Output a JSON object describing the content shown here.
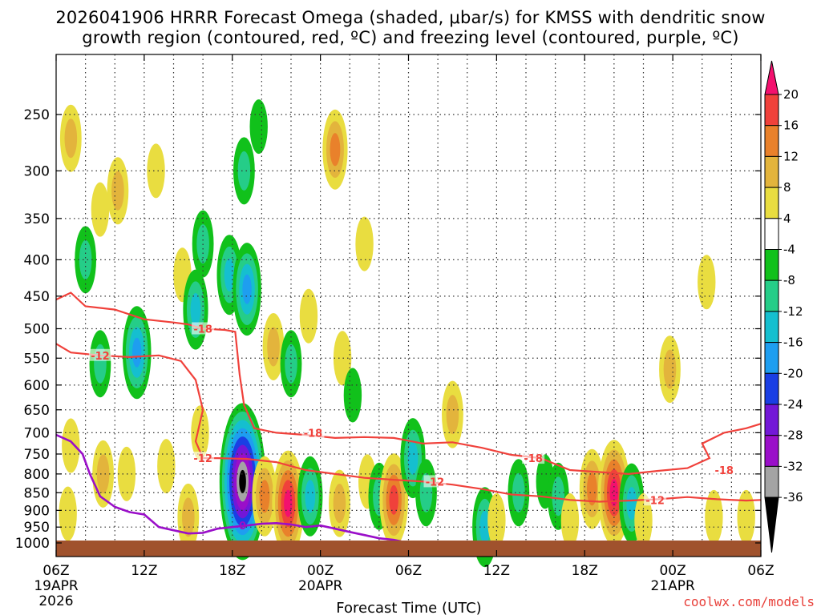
{
  "chart_data": {
    "type": "heatmap",
    "title_line1": "2026041906 HRRR Forecast Omega (shaded, μbar/s) for KMSS with dendritic snow",
    "title_line2": "growth region (contoured, red, ºC) and freezing level (contoured, purple, ºC)",
    "xlabel": "Forecast Time (UTC)",
    "ylabel": "",
    "y_scale": "log-pressure",
    "ylim": [
      1000,
      200
    ],
    "y_ticks": [
      250,
      300,
      350,
      400,
      450,
      500,
      550,
      600,
      650,
      700,
      750,
      800,
      850,
      900,
      950,
      1000
    ],
    "x_range_hours": [
      0,
      48
    ],
    "x_ticks": [
      {
        "hour": 0,
        "label": "06Z",
        "sub1": "19APR",
        "sub2": "2026"
      },
      {
        "hour": 6,
        "label": "12Z",
        "sub1": "",
        "sub2": ""
      },
      {
        "hour": 12,
        "label": "18Z",
        "sub1": "",
        "sub2": ""
      },
      {
        "hour": 18,
        "label": "00Z",
        "sub1": "20APR",
        "sub2": ""
      },
      {
        "hour": 24,
        "label": "06Z",
        "sub1": "",
        "sub2": ""
      },
      {
        "hour": 30,
        "label": "12Z",
        "sub1": "",
        "sub2": ""
      },
      {
        "hour": 36,
        "label": "18Z",
        "sub1": "",
        "sub2": ""
      },
      {
        "hour": 42,
        "label": "00Z",
        "sub1": "21APR",
        "sub2": ""
      },
      {
        "hour": 48,
        "label": "06Z",
        "sub1": "",
        "sub2": ""
      }
    ],
    "grid": true,
    "colorbar": {
      "position": "right",
      "labels": [
        "20",
        "16",
        "12",
        "8",
        "4",
        "-4",
        "-8",
        "-12",
        "-16",
        "-20",
        "-24",
        "-28",
        "-32",
        "-36"
      ],
      "colors": [
        "#f3106e",
        "#f0413b",
        "#e9812b",
        "#e3b43c",
        "#e9dd40",
        "#ffffff",
        "#11c11b",
        "#25cd88",
        "#15bfcf",
        "#1e9ef0",
        "#1a3fe4",
        "#7317d7",
        "#9a0fc9",
        "#a4a4a4",
        "#000000"
      ]
    },
    "omega_cells": [
      {
        "hour": 1.0,
        "p": 270,
        "value": 10
      },
      {
        "hour": 3.0,
        "p": 340,
        "value": 6
      },
      {
        "hour": 4.2,
        "p": 320,
        "value": 10
      },
      {
        "hour": 6.8,
        "p": 300,
        "value": 4
      },
      {
        "hour": 2.0,
        "p": 400,
        "value": -8
      },
      {
        "hour": 5.5,
        "p": 540,
        "value": -16
      },
      {
        "hour": 3.0,
        "p": 560,
        "value": -10
      },
      {
        "hour": 1.0,
        "p": 730,
        "value": 6
      },
      {
        "hour": 0.8,
        "p": 910,
        "value": 4
      },
      {
        "hour": 3.2,
        "p": 800,
        "value": 8
      },
      {
        "hour": 4.8,
        "p": 800,
        "value": 4
      },
      {
        "hour": 7.5,
        "p": 780,
        "value": 4
      },
      {
        "hour": 8.6,
        "p": 420,
        "value": 6
      },
      {
        "hour": 9.5,
        "p": 470,
        "value": -14
      },
      {
        "hour": 10.0,
        "p": 380,
        "value": -8
      },
      {
        "hour": 11.8,
        "p": 420,
        "value": -14
      },
      {
        "hour": 13.0,
        "p": 440,
        "value": -16
      },
      {
        "hour": 12.8,
        "p": 300,
        "value": -8
      },
      {
        "hour": 13.8,
        "p": 260,
        "value": -4
      },
      {
        "hour": 9.8,
        "p": 700,
        "value": 6
      },
      {
        "hour": 9.0,
        "p": 920,
        "value": 8
      },
      {
        "hour": 12.7,
        "p": 820,
        "value": -36
      },
      {
        "hour": 14.2,
        "p": 860,
        "value": 12
      },
      {
        "hour": 15.8,
        "p": 880,
        "value": 20
      },
      {
        "hour": 14.8,
        "p": 530,
        "value": 8
      },
      {
        "hour": 16.0,
        "p": 560,
        "value": -8
      },
      {
        "hour": 17.2,
        "p": 480,
        "value": 4
      },
      {
        "hour": 19.0,
        "p": 280,
        "value": 12
      },
      {
        "hour": 21.0,
        "p": 380,
        "value": 4
      },
      {
        "hour": 19.5,
        "p": 550,
        "value": 4
      },
      {
        "hour": 20.2,
        "p": 620,
        "value": -4
      },
      {
        "hour": 17.3,
        "p": 860,
        "value": -14
      },
      {
        "hour": 19.3,
        "p": 880,
        "value": 10
      },
      {
        "hour": 21.2,
        "p": 820,
        "value": 4
      },
      {
        "hour": 22.0,
        "p": 860,
        "value": -8
      },
      {
        "hour": 23.0,
        "p": 870,
        "value": 16
      },
      {
        "hour": 24.3,
        "p": 760,
        "value": -12
      },
      {
        "hour": 25.2,
        "p": 850,
        "value": -8
      },
      {
        "hour": 27.0,
        "p": 660,
        "value": 8
      },
      {
        "hour": 29.2,
        "p": 950,
        "value": -12
      },
      {
        "hour": 31.5,
        "p": 850,
        "value": -8
      },
      {
        "hour": 33.3,
        "p": 820,
        "value": -4
      },
      {
        "hour": 34.2,
        "p": 860,
        "value": -8
      },
      {
        "hour": 36.5,
        "p": 840,
        "value": 12
      },
      {
        "hour": 38.0,
        "p": 850,
        "value": 20
      },
      {
        "hour": 39.2,
        "p": 880,
        "value": -12
      },
      {
        "hour": 41.8,
        "p": 570,
        "value": 8
      },
      {
        "hour": 44.3,
        "p": 430,
        "value": 6
      },
      {
        "hour": 44.8,
        "p": 920,
        "value": 4
      },
      {
        "hour": 47.0,
        "p": 920,
        "value": 4
      },
      {
        "hour": 40.0,
        "p": 930,
        "value": 4
      },
      {
        "hour": 35.0,
        "p": 930,
        "value": 4
      },
      {
        "hour": 30.0,
        "p": 930,
        "value": 4
      }
    ],
    "isotherm_labels": [
      {
        "hour": 10.0,
        "p": 500,
        "text": "-18"
      },
      {
        "hour": 3.0,
        "p": 545,
        "text": "-12"
      },
      {
        "hour": 10.0,
        "p": 760,
        "text": "-12"
      },
      {
        "hour": 17.5,
        "p": 700,
        "text": "-18"
      },
      {
        "hour": 25.8,
        "p": 820,
        "text": "-12"
      },
      {
        "hour": 32.5,
        "p": 760,
        "text": "-18"
      },
      {
        "hour": 40.8,
        "p": 870,
        "text": "-12"
      },
      {
        "hour": 45.5,
        "p": 790,
        "text": "-18"
      }
    ],
    "freezing_level_labels": [
      {
        "hour": 12.7,
        "p": 945,
        "text": "0"
      }
    ],
    "credit": "coolwx.com/models"
  }
}
